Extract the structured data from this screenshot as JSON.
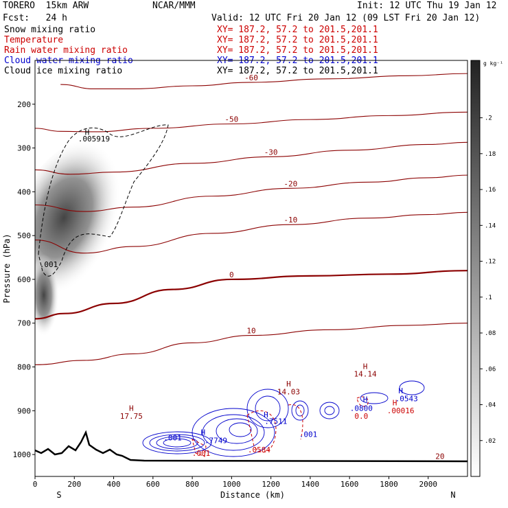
{
  "header": {
    "model": "TORERO  15km ARW",
    "center": "NCAR/MMM",
    "init": "Init: 12 UTC Thu 19 Jan 12",
    "fcst": "Fcst:   24 h",
    "valid": "Valid: 12 UTC Fri 20 Jan 12 (09 LST Fri 20 Jan 12)"
  },
  "fields": [
    {
      "name": "Snow mixing ratio",
      "xy": "XY= 187.2, 57.2 to 201.5,201.1",
      "color": "#000000"
    },
    {
      "name": "Temperature",
      "xy": "XY= 187.2, 57.2 to 201.5,201.1",
      "color": "#cc0000"
    },
    {
      "name": "Rain water mixing ratio",
      "xy": "XY= 187.2, 57.2 to 201.5,201.1",
      "color": "#cc0000"
    },
    {
      "name": "Cloud water mixing ratio",
      "xy": "XY= 187.2, 57.2 to 201.5,201.1",
      "color": "#0000cc"
    },
    {
      "name": "Cloud ice mixing ratio",
      "xy": "XY= 187.2, 57.2 to 201.5,201.1",
      "color": "#000000"
    }
  ],
  "chart_data": {
    "type": "cross-section",
    "xlabel": "Distance (km)",
    "ylabel": "Pressure (hPa)",
    "xlim": [
      0,
      2200
    ],
    "ylim": [
      1050,
      100
    ],
    "x_ticks": [
      0,
      200,
      400,
      600,
      800,
      1000,
      1200,
      1400,
      1600,
      1800,
      2000
    ],
    "y_ticks": [
      200,
      300,
      400,
      500,
      600,
      700,
      800,
      900,
      1000
    ],
    "left_end": "S",
    "right_end": "N",
    "colorbar": {
      "unit": "g kg⁻¹",
      "ticks": [
        0.02,
        0.04,
        0.06,
        0.08,
        0.1,
        0.12,
        0.14,
        0.16,
        0.18,
        0.2
      ],
      "tick_labels": [
        ".02",
        ".04",
        ".06",
        ".08",
        ".1",
        ".12",
        ".14",
        ".16",
        ".18",
        ".2"
      ],
      "max": 0.232
    },
    "temperature_contours": [
      {
        "value": -60,
        "label": "-60",
        "points": [
          [
            130,
            155
          ],
          [
            300,
            165
          ],
          [
            500,
            165
          ],
          [
            800,
            158
          ],
          [
            1100,
            150
          ],
          [
            1500,
            142
          ],
          [
            1900,
            135
          ],
          [
            2200,
            130
          ]
        ]
      },
      {
        "value": -50,
        "label": "-50",
        "points": [
          [
            0,
            255
          ],
          [
            130,
            262
          ],
          [
            300,
            263
          ],
          [
            600,
            255
          ],
          [
            1000,
            245
          ],
          [
            1400,
            235
          ],
          [
            1800,
            226
          ],
          [
            2200,
            218
          ]
        ]
      },
      {
        "value": -30,
        "label": "-30",
        "points": [
          [
            0,
            350
          ],
          [
            180,
            360
          ],
          [
            400,
            355
          ],
          [
            800,
            335
          ],
          [
            1200,
            320
          ],
          [
            1600,
            305
          ],
          [
            2000,
            292
          ],
          [
            2200,
            287
          ]
        ]
      },
      {
        "value": -20,
        "label": "-20",
        "points": [
          [
            0,
            430
          ],
          [
            250,
            445
          ],
          [
            500,
            435
          ],
          [
            900,
            410
          ],
          [
            1300,
            392
          ],
          [
            1700,
            378
          ],
          [
            2000,
            368
          ],
          [
            2200,
            362
          ]
        ]
      },
      {
        "value": -10,
        "label": "-10",
        "points": [
          [
            0,
            510
          ],
          [
            250,
            540
          ],
          [
            500,
            525
          ],
          [
            900,
            495
          ],
          [
            1300,
            475
          ],
          [
            1700,
            460
          ],
          [
            2000,
            452
          ],
          [
            2200,
            447
          ]
        ]
      },
      {
        "value": 0,
        "label": "0",
        "points": [
          [
            0,
            690
          ],
          [
            150,
            678
          ],
          [
            400,
            655
          ],
          [
            700,
            623
          ],
          [
            1000,
            600
          ],
          [
            1400,
            592
          ],
          [
            1800,
            588
          ],
          [
            2200,
            580
          ]
        ]
      },
      {
        "value": 10,
        "label": "10",
        "points": [
          [
            0,
            795
          ],
          [
            250,
            785
          ],
          [
            500,
            770
          ],
          [
            800,
            745
          ],
          [
            1100,
            728
          ],
          [
            1500,
            715
          ],
          [
            1900,
            705
          ],
          [
            2200,
            700
          ]
        ]
      }
    ],
    "cloud_ice_contour": {
      "value": 0.001,
      "label": ".001"
    },
    "annotations": [
      {
        "text": "H",
        "x": 265,
        "y": 270,
        "color": "#000000"
      },
      {
        "text": ".005919",
        "x": 300,
        "y": 285,
        "color": "#000000"
      },
      {
        "text": ".001",
        "x": 70,
        "y": 572,
        "color": "#000000"
      },
      {
        "text": "H",
        "x": 490,
        "y": 900,
        "color": "#8b0000"
      },
      {
        "text": "17.75",
        "x": 490,
        "y": 918,
        "color": "#8b0000"
      },
      {
        "text": "H",
        "x": 1290,
        "y": 845,
        "color": "#8b0000"
      },
      {
        "text": "14.03",
        "x": 1290,
        "y": 863,
        "color": "#8b0000"
      },
      {
        "text": "H",
        "x": 1680,
        "y": 805,
        "color": "#8b0000"
      },
      {
        "text": "14.14",
        "x": 1680,
        "y": 822,
        "color": "#8b0000"
      },
      {
        "text": "20",
        "x": 2060,
        "y": 1010,
        "color": "#8b0000"
      },
      {
        "text": "H",
        "x": 855,
        "y": 955,
        "color": "#0000cc"
      },
      {
        "text": ".7749",
        "x": 920,
        "y": 974,
        "color": "#0000cc"
      },
      {
        "text": ".001",
        "x": 700,
        "y": 968,
        "color": "#0000cc"
      },
      {
        "text": "H",
        "x": 1175,
        "y": 915,
        "color": "#0000cc"
      },
      {
        "text": ".7511",
        "x": 1225,
        "y": 930,
        "color": "#0000cc"
      },
      {
        "text": ".001",
        "x": 1390,
        "y": 960,
        "color": "#0000cc"
      },
      {
        "text": "H",
        "x": 1680,
        "y": 880,
        "color": "#0000cc"
      },
      {
        "text": ".0800",
        "x": 1660,
        "y": 900,
        "color": "#0000cc"
      },
      {
        "text": "H",
        "x": 1860,
        "y": 860,
        "color": "#0000cc"
      },
      {
        "text": ".0543",
        "x": 1890,
        "y": 878,
        "color": "#0000cc"
      },
      {
        "text": ".001",
        "x": 845,
        "y": 1003,
        "color": "#cc0000"
      },
      {
        "text": ".0584",
        "x": 1140,
        "y": 995,
        "color": "#cc0000"
      },
      {
        "text": "H",
        "x": 1830,
        "y": 888,
        "color": "#cc0000"
      },
      {
        "text": ".00016",
        "x": 1860,
        "y": 906,
        "color": "#cc0000"
      },
      {
        "text": "0.0",
        "x": 1660,
        "y": 918,
        "color": "#cc0000"
      }
    ]
  }
}
